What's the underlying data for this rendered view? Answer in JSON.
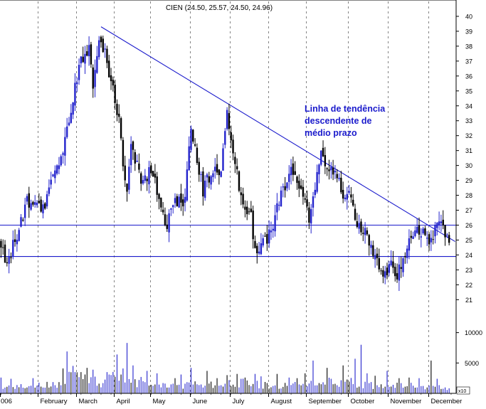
{
  "chart_data": {
    "type": "candlestick",
    "title": "CIEN (24.50, 25.57, 24.50, 24.96)",
    "y_axis": {
      "ticks": [
        21,
        22,
        23,
        24,
        25,
        26,
        27,
        28,
        29,
        30,
        31,
        32,
        33,
        34,
        35,
        36,
        37,
        38,
        39,
        40
      ],
      "range": [
        20.3,
        41.0
      ],
      "position": "right"
    },
    "volume_axis": {
      "ticks": [
        5000,
        10000
      ],
      "range": [
        0,
        13000
      ],
      "multiplier_label": "x10"
    },
    "x_axis": {
      "labels": [
        "006",
        "February",
        "March",
        "April",
        "May",
        "June",
        "July",
        "August",
        "September",
        "October",
        "November",
        "December"
      ],
      "month_index": [
        0,
        19,
        38,
        57,
        75,
        95,
        115,
        134,
        153,
        174,
        194,
        214
      ]
    },
    "grid": "vertical-dashed",
    "annotation": {
      "lines": [
        "Linha de tendência",
        "descendente de",
        "médio prazo"
      ],
      "color": "#1a1acc",
      "placement": "upper-right"
    },
    "trendline": {
      "start": {
        "day": 50,
        "price": 39.3
      },
      "end": {
        "day": 227,
        "price": 24.9
      }
    },
    "support_lines": [
      26.0,
      23.9
    ],
    "price_keypoints": [
      [
        0,
        24.8
      ],
      [
        3,
        23.0
      ],
      [
        6,
        24.6
      ],
      [
        9,
        25.8
      ],
      [
        13,
        27.5
      ],
      [
        17,
        27.9
      ],
      [
        20,
        26.6
      ],
      [
        24,
        28.3
      ],
      [
        28,
        30.0
      ],
      [
        32,
        31.5
      ],
      [
        36,
        34.6
      ],
      [
        40,
        36.9
      ],
      [
        44,
        38.0
      ],
      [
        46,
        35.0
      ],
      [
        49,
        38.5
      ],
      [
        52,
        37.4
      ],
      [
        55,
        35.5
      ],
      [
        57,
        34.4
      ],
      [
        59,
        33.0
      ],
      [
        61,
        30.0
      ],
      [
        63,
        28.5
      ],
      [
        65,
        31.3
      ],
      [
        68,
        30.0
      ],
      [
        71,
        28.6
      ],
      [
        74,
        29.8
      ],
      [
        77,
        29.3
      ],
      [
        80,
        26.8
      ],
      [
        83,
        25.9
      ],
      [
        86,
        27.5
      ],
      [
        89,
        27.6
      ],
      [
        92,
        27.7
      ],
      [
        95,
        32.8
      ],
      [
        98,
        30.5
      ],
      [
        101,
        28.3
      ],
      [
        104,
        29.3
      ],
      [
        107,
        30.2
      ],
      [
        110,
        29.5
      ],
      [
        113,
        33.3
      ],
      [
        116,
        30.8
      ],
      [
        119,
        28.6
      ],
      [
        122,
        27.4
      ],
      [
        125,
        26.6
      ],
      [
        127,
        24.3
      ],
      [
        130,
        24.7
      ],
      [
        133,
        25.1
      ],
      [
        136,
        25.6
      ],
      [
        139,
        27.8
      ],
      [
        142,
        28.6
      ],
      [
        145,
        29.8
      ],
      [
        148,
        29.1
      ],
      [
        151,
        28.0
      ],
      [
        154,
        26.5
      ],
      [
        157,
        28.8
      ],
      [
        160,
        30.7
      ],
      [
        163,
        30.2
      ],
      [
        166,
        29.5
      ],
      [
        169,
        29.0
      ],
      [
        172,
        27.5
      ],
      [
        175,
        28.3
      ],
      [
        177,
        26.0
      ],
      [
        180,
        25.9
      ],
      [
        183,
        25.2
      ],
      [
        186,
        24.0
      ],
      [
        189,
        23.2
      ],
      [
        192,
        22.6
      ],
      [
        195,
        23.2
      ],
      [
        198,
        22.8
      ],
      [
        201,
        23.4
      ],
      [
        204,
        24.8
      ],
      [
        207,
        25.6
      ],
      [
        210,
        25.5
      ],
      [
        213,
        25.0
      ],
      [
        216,
        25.4
      ],
      [
        219,
        26.5
      ],
      [
        222,
        25.3
      ],
      [
        224,
        25.0
      ]
    ],
    "volume_profile": [
      [
        0,
        1200
      ],
      [
        10,
        1100
      ],
      [
        20,
        1300
      ],
      [
        30,
        1400
      ],
      [
        35,
        3500
      ],
      [
        40,
        2400
      ],
      [
        45,
        2600
      ],
      [
        50,
        1800
      ],
      [
        55,
        2500
      ],
      [
        60,
        2200
      ],
      [
        65,
        1800
      ],
      [
        70,
        1500
      ],
      [
        80,
        1300
      ],
      [
        90,
        1300
      ],
      [
        100,
        1400
      ],
      [
        110,
        1500
      ],
      [
        120,
        1800
      ],
      [
        128,
        1500
      ],
      [
        135,
        1300
      ],
      [
        145,
        1500
      ],
      [
        150,
        2200
      ],
      [
        155,
        1600
      ],
      [
        165,
        1800
      ],
      [
        175,
        1900
      ],
      [
        180,
        1400
      ],
      [
        190,
        1200
      ],
      [
        200,
        1300
      ],
      [
        210,
        1100
      ],
      [
        220,
        1000
      ],
      [
        224,
        1000
      ]
    ],
    "volume_spikes": [
      [
        0,
        2600
      ],
      [
        5,
        2400
      ],
      [
        16,
        2500
      ],
      [
        31,
        4100
      ],
      [
        33,
        6900
      ],
      [
        37,
        3500
      ],
      [
        40,
        3500
      ],
      [
        43,
        4200
      ],
      [
        46,
        3900
      ],
      [
        53,
        3500
      ],
      [
        58,
        6400
      ],
      [
        61,
        4100
      ],
      [
        63,
        8300
      ],
      [
        66,
        4600
      ],
      [
        70,
        2700
      ],
      [
        73,
        3700
      ],
      [
        78,
        3300
      ],
      [
        87,
        2500
      ],
      [
        90,
        3100
      ],
      [
        95,
        4200
      ],
      [
        103,
        3700
      ],
      [
        108,
        2500
      ],
      [
        113,
        3000
      ],
      [
        118,
        3200
      ],
      [
        122,
        2600
      ],
      [
        127,
        3200
      ],
      [
        130,
        2800
      ],
      [
        138,
        3200
      ],
      [
        144,
        2600
      ],
      [
        152,
        3300
      ],
      [
        156,
        5400
      ],
      [
        163,
        4200
      ],
      [
        171,
        4600
      ],
      [
        177,
        5700
      ],
      [
        180,
        8000
      ],
      [
        183,
        3300
      ],
      [
        187,
        2900
      ],
      [
        193,
        3700
      ],
      [
        199,
        2500
      ],
      [
        204,
        2600
      ],
      [
        209,
        2500
      ],
      [
        215,
        5400
      ],
      [
        218,
        2400
      ]
    ]
  }
}
